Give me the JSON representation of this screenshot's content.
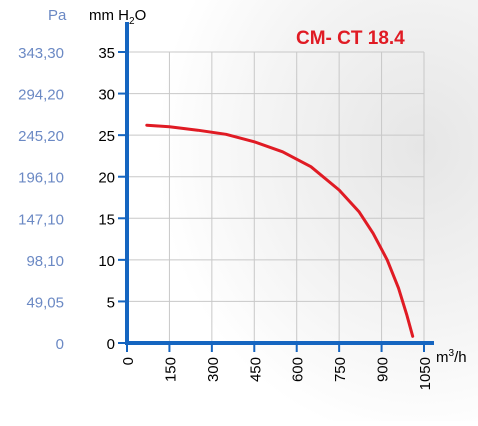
{
  "chart_data": {
    "type": "line",
    "title": "CM- CT 18.4",
    "left_axis_unit": "Pa",
    "right_axis_unit_parts": [
      "mm H",
      "2",
      "O"
    ],
    "xlabel_parts": [
      "m",
      "3",
      "/h"
    ],
    "x_ticks": [
      0,
      150,
      300,
      450,
      600,
      750,
      900,
      1050
    ],
    "x_tick_labels": [
      "0",
      "150",
      "300",
      "450",
      "600",
      "750",
      "900",
      "1050"
    ],
    "xlim": [
      0,
      1050
    ],
    "y_ticks": [
      0,
      5,
      10,
      15,
      20,
      25,
      30,
      35
    ],
    "y_tick_labels": [
      "0",
      "5",
      "10",
      "15",
      "20",
      "25",
      "30",
      "35"
    ],
    "ylim": [
      0,
      35
    ],
    "pa_tick_labels": [
      "0",
      "49,05",
      "98,10",
      "147,10",
      "196,10",
      "245,20",
      "294,20",
      "343,30"
    ],
    "grid": true,
    "series": [
      {
        "color": "#e01b24",
        "x": [
          70,
          150,
          250,
          350,
          450,
          550,
          650,
          750,
          820,
          870,
          920,
          960,
          990,
          1010
        ],
        "y": [
          26.2,
          26.0,
          25.6,
          25.1,
          24.2,
          23.0,
          21.2,
          18.4,
          15.8,
          13.2,
          10.0,
          6.6,
          3.3,
          0.8
        ]
      }
    ]
  },
  "colors": {
    "axis": "#1565c0",
    "pa_labels": "#6b89c4",
    "grid": "#c8c8c8",
    "title": "#e01b24",
    "text": "#000000"
  }
}
